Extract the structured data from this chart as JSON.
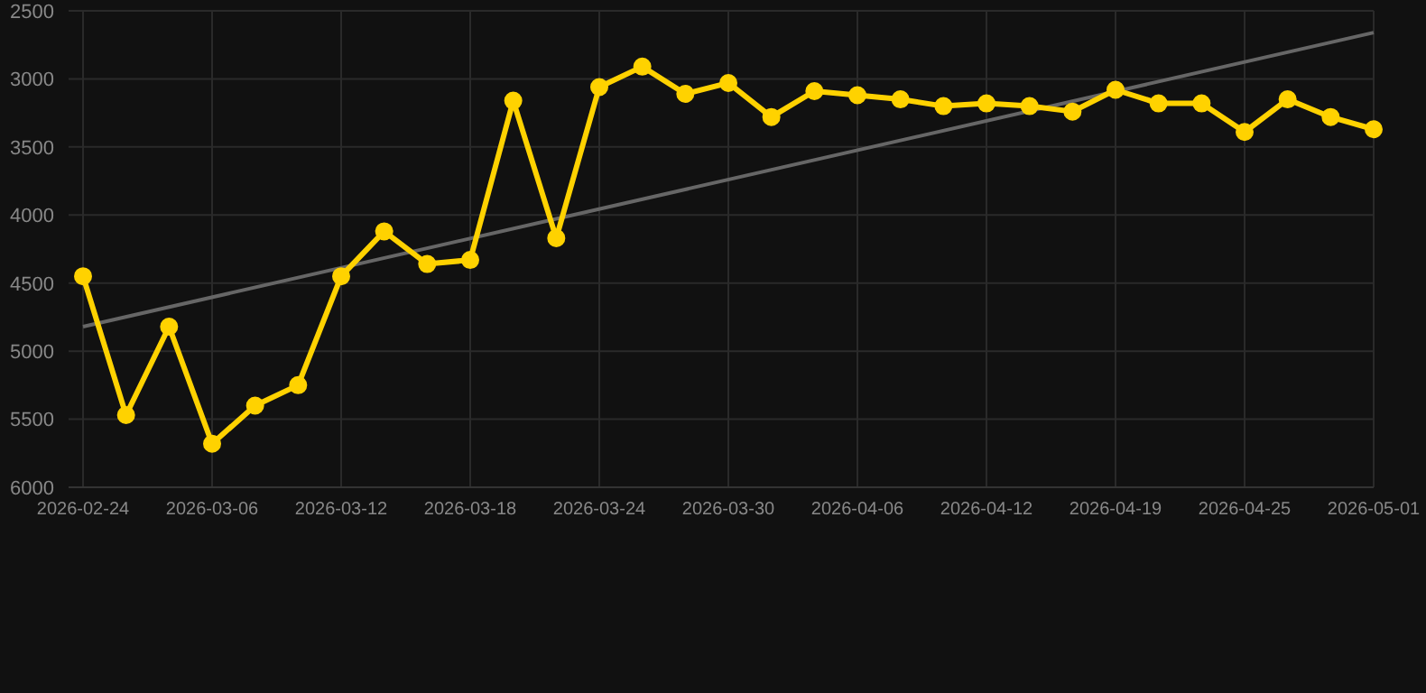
{
  "chart_data": {
    "type": "line",
    "categories": [
      "2026-02-24",
      null,
      null,
      "2026-03-06",
      null,
      null,
      "2026-03-12",
      null,
      null,
      "2026-03-18",
      null,
      null,
      "2026-03-24",
      null,
      null,
      "2026-03-30",
      null,
      null,
      "2026-04-06",
      null,
      null,
      "2026-04-12",
      null,
      null,
      "2026-04-19",
      null,
      null,
      "2026-04-25",
      null,
      null,
      "2026-05-01"
    ],
    "series": [
      {
        "color": "#ffd200",
        "marker": "circle",
        "values": [
          4450,
          5470,
          4820,
          5680,
          5400,
          5250,
          4450,
          4120,
          4360,
          4330,
          3160,
          4170,
          3060,
          2910,
          3110,
          3030,
          3280,
          3090,
          3120,
          3150,
          3200,
          3180,
          3200,
          3240,
          3080,
          3180,
          3180,
          3390,
          3150,
          3280,
          3370
        ]
      },
      {
        "type": "line",
        "color": "#666666",
        "marker": "none",
        "values": [
          4820,
          null,
          null,
          null,
          null,
          null,
          null,
          null,
          null,
          null,
          null,
          null,
          null,
          null,
          null,
          null,
          null,
          null,
          null,
          null,
          null,
          null,
          null,
          null,
          null,
          null,
          null,
          null,
          null,
          null,
          2660
        ]
      }
    ],
    "ylim": [
      6000,
      2500
    ],
    "yticks": [
      2500,
      3000,
      3500,
      4000,
      4500,
      5000,
      5500,
      6000
    ],
    "grid": true,
    "legend": false
  }
}
